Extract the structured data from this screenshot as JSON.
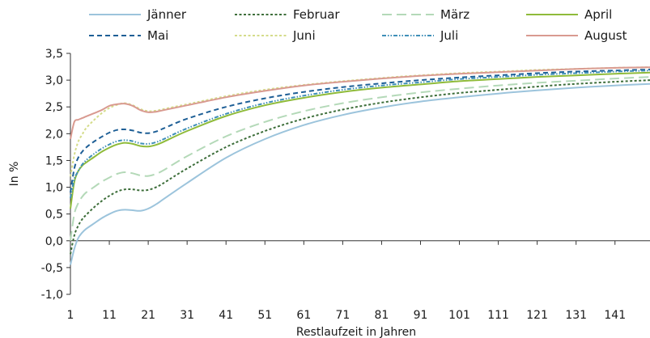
{
  "chart_data": {
    "type": "line",
    "title": "",
    "xlabel": "Restlaufzeit in Jahren",
    "ylabel": "In %",
    "xlim": [
      1,
      150
    ],
    "ylim": [
      -1.0,
      3.5
    ],
    "grid": false,
    "legend": "top",
    "x_ticks": [
      1,
      11,
      21,
      31,
      41,
      51,
      61,
      71,
      81,
      91,
      101,
      111,
      121,
      131,
      141
    ],
    "y_ticks": [
      "-1,0",
      "-0,5",
      "0,0",
      "0,5",
      "1,0",
      "1,5",
      "2,0",
      "2,5",
      "3,0",
      "3,5"
    ],
    "y_tick_values": [
      -1.0,
      -0.5,
      0.0,
      0.5,
      1.0,
      1.5,
      2.0,
      2.5,
      3.0,
      3.5
    ],
    "x": [
      1,
      2,
      3,
      4,
      5,
      7,
      9,
      11,
      13,
      15,
      17,
      19,
      21,
      23,
      25,
      31,
      41,
      51,
      61,
      71,
      81,
      91,
      101,
      111,
      121,
      131,
      141,
      150
    ],
    "series": [
      {
        "name": "Jänner",
        "color": "#9cc4dc",
        "dash": "solid",
        "values": [
          -0.45,
          -0.15,
          0.05,
          0.15,
          0.22,
          0.32,
          0.42,
          0.5,
          0.56,
          0.58,
          0.57,
          0.56,
          0.6,
          0.68,
          0.78,
          1.08,
          1.55,
          1.9,
          2.16,
          2.35,
          2.49,
          2.6,
          2.68,
          2.75,
          2.81,
          2.86,
          2.9,
          2.93
        ]
      },
      {
        "name": "Februar",
        "color": "#3d6e3a",
        "dash": "short",
        "values": [
          -0.25,
          0.1,
          0.28,
          0.4,
          0.48,
          0.62,
          0.74,
          0.84,
          0.92,
          0.96,
          0.96,
          0.94,
          0.95,
          1.0,
          1.08,
          1.35,
          1.75,
          2.05,
          2.28,
          2.45,
          2.58,
          2.68,
          2.76,
          2.82,
          2.88,
          2.93,
          2.97,
          3.0
        ]
      },
      {
        "name": "März",
        "color": "#b4d9b8",
        "dash": "long",
        "values": [
          0.0,
          0.5,
          0.7,
          0.82,
          0.9,
          1.0,
          1.1,
          1.18,
          1.25,
          1.28,
          1.26,
          1.22,
          1.21,
          1.25,
          1.32,
          1.58,
          1.95,
          2.22,
          2.42,
          2.57,
          2.68,
          2.77,
          2.84,
          2.9,
          2.95,
          2.99,
          3.03,
          3.06
        ]
      },
      {
        "name": "April",
        "color": "#8fbb3a",
        "dash": "solid",
        "values": [
          0.6,
          1.1,
          1.3,
          1.4,
          1.46,
          1.56,
          1.66,
          1.74,
          1.8,
          1.83,
          1.81,
          1.77,
          1.76,
          1.79,
          1.85,
          2.05,
          2.33,
          2.53,
          2.67,
          2.78,
          2.86,
          2.92,
          2.98,
          3.02,
          3.06,
          3.09,
          3.12,
          3.14
        ]
      },
      {
        "name": "Mai",
        "color": "#1e5f96",
        "dash": "dashed",
        "values": [
          0.9,
          1.35,
          1.55,
          1.66,
          1.74,
          1.85,
          1.94,
          2.02,
          2.07,
          2.08,
          2.06,
          2.02,
          2.01,
          2.04,
          2.1,
          2.28,
          2.5,
          2.66,
          2.78,
          2.87,
          2.94,
          3.0,
          3.05,
          3.09,
          3.13,
          3.16,
          3.18,
          3.2
        ]
      },
      {
        "name": "Juni",
        "color": "#d4dc8a",
        "dash": "short",
        "values": [
          1.2,
          1.6,
          1.85,
          1.98,
          2.1,
          2.25,
          2.38,
          2.48,
          2.54,
          2.57,
          2.53,
          2.46,
          2.42,
          2.43,
          2.46,
          2.55,
          2.7,
          2.82,
          2.91,
          2.98,
          3.04,
          3.09,
          3.13,
          3.16,
          3.19,
          3.21,
          3.23,
          3.24
        ]
      },
      {
        "name": "Juli",
        "color": "#3f8fb8",
        "dash": "dashdot",
        "values": [
          0.8,
          1.15,
          1.3,
          1.42,
          1.5,
          1.62,
          1.72,
          1.8,
          1.86,
          1.88,
          1.86,
          1.82,
          1.81,
          1.84,
          1.9,
          2.1,
          2.37,
          2.57,
          2.71,
          2.82,
          2.9,
          2.96,
          3.02,
          3.06,
          3.1,
          3.13,
          3.16,
          3.18
        ]
      },
      {
        "name": "August",
        "color": "#d99a90",
        "dash": "solid",
        "values": [
          1.9,
          2.22,
          2.26,
          2.29,
          2.32,
          2.38,
          2.44,
          2.52,
          2.55,
          2.56,
          2.52,
          2.44,
          2.4,
          2.41,
          2.44,
          2.53,
          2.68,
          2.8,
          2.9,
          2.97,
          3.03,
          3.08,
          3.12,
          3.15,
          3.18,
          3.21,
          3.23,
          3.24
        ]
      }
    ]
  }
}
